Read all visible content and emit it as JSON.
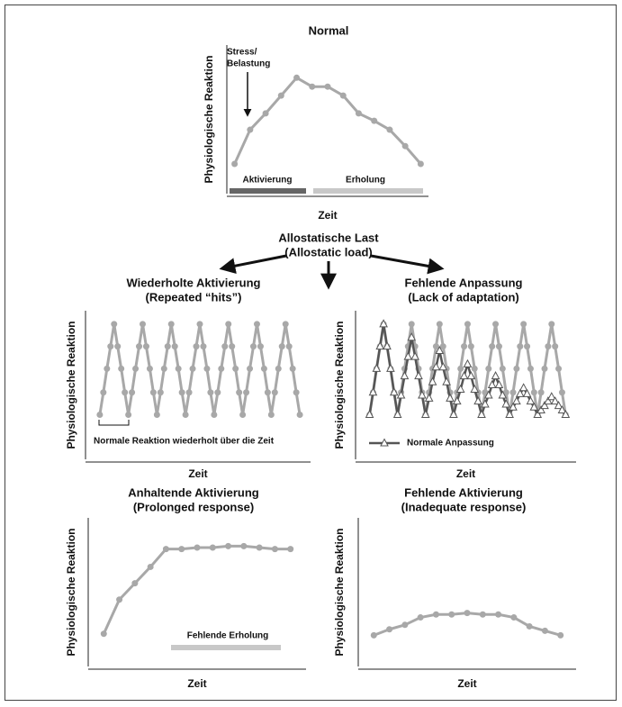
{
  "center": {
    "title": "Allostatische Last",
    "subtitle": "(Allostatic load)"
  },
  "chart_data": [
    {
      "type": "line",
      "title": "Normal",
      "xlabel": "Zeit",
      "ylabel": "Physiologische Reaktion",
      "x": [
        0,
        1,
        2,
        3,
        4,
        5,
        6,
        7,
        8,
        9,
        10,
        11,
        12
      ],
      "xlim": [
        -0.5,
        12.5
      ],
      "ylim": [
        0,
        100
      ],
      "series": [
        {
          "color": "#a8a8a8",
          "marker": "circle",
          "values": [
            20,
            43,
            54,
            66,
            78,
            72,
            72,
            66,
            54,
            49,
            43,
            32,
            20
          ]
        }
      ],
      "annotations": [
        "Stress/",
        "Belastung",
        "Aktivierung",
        "Erholung"
      ]
    },
    {
      "type": "line",
      "title": "Wiederholte Aktivierung",
      "subtitle": "(Repeated “hits”)",
      "xlabel": "Zeit",
      "ylabel": "Physiologische Reaktion",
      "x": [
        0,
        1,
        2,
        3,
        4,
        5,
        6,
        7,
        8,
        9,
        10,
        11,
        12,
        13,
        14,
        15,
        16,
        17,
        18,
        19,
        20,
        21,
        22,
        23,
        24,
        25,
        26,
        27,
        28,
        29,
        30,
        31,
        32,
        33,
        34,
        35,
        36,
        37,
        38,
        39,
        40,
        41,
        42,
        43,
        44,
        45,
        46,
        47,
        48,
        49,
        50,
        51,
        52,
        53,
        54,
        55,
        56
      ],
      "xlim": [
        -4,
        59
      ],
      "ylim": [
        0,
        100
      ],
      "series": [
        {
          "color": "#a8a8a8",
          "marker": "circle",
          "values": [
            30,
            45,
            61,
            76,
            91,
            76,
            61,
            45,
            30,
            45,
            61,
            76,
            91,
            76,
            61,
            45,
            30,
            45,
            61,
            76,
            91,
            76,
            61,
            45,
            30,
            45,
            61,
            76,
            91,
            76,
            61,
            45,
            30,
            45,
            61,
            76,
            91,
            76,
            61,
            45,
            30,
            45,
            61,
            76,
            91,
            76,
            61,
            45,
            30,
            45,
            61,
            76,
            91,
            76,
            61,
            45,
            30
          ]
        }
      ],
      "annotations": [
        "Normale Reaktion wiederholt über die Zeit"
      ]
    },
    {
      "type": "line",
      "title": "Fehlende Anpassung",
      "subtitle": "(Lack of adaptation)",
      "xlabel": "Zeit",
      "ylabel": "Physiologische Reaktion",
      "x": [
        0,
        1,
        2,
        3,
        4,
        5,
        6,
        7,
        8,
        9,
        10,
        11,
        12,
        13,
        14,
        15,
        16,
        17,
        18,
        19,
        20,
        21,
        22,
        23,
        24,
        25,
        26,
        27,
        28,
        29,
        30,
        31,
        32,
        33,
        34,
        35,
        36,
        37,
        38,
        39,
        40,
        41,
        42,
        43,
        44,
        45,
        46,
        47,
        48,
        49,
        50,
        51,
        52,
        53,
        54,
        55,
        56
      ],
      "xlim": [
        -4,
        59
      ],
      "ylim": [
        0,
        100
      ],
      "series": [
        {
          "color": "#a8a8a8",
          "marker": "circle",
          "values": [
            30,
            45,
            61,
            76,
            91,
            76,
            61,
            45,
            30,
            45,
            61,
            76,
            91,
            76,
            61,
            45,
            30,
            45,
            61,
            76,
            91,
            76,
            61,
            45,
            30,
            45,
            61,
            76,
            91,
            76,
            61,
            45,
            30,
            45,
            61,
            76,
            91,
            76,
            61,
            45,
            30,
            45,
            61,
            76,
            91,
            76,
            61,
            45,
            30,
            45,
            61,
            76,
            91,
            76,
            61,
            45,
            30
          ]
        },
        {
          "name": "Normale Anpassung",
          "color": "#555555",
          "marker": "triangle",
          "values": [
            30,
            45,
            61,
            76,
            91,
            76,
            61,
            45,
            30,
            43,
            56,
            69,
            82,
            69,
            56,
            43,
            30,
            41,
            52,
            62,
            73,
            62,
            52,
            41,
            30,
            39,
            47,
            56,
            64,
            56,
            47,
            39,
            30,
            37,
            43,
            50,
            56,
            50,
            43,
            37,
            30,
            35,
            39,
            44,
            48,
            44,
            39,
            35,
            30,
            33,
            36,
            39,
            42,
            39,
            36,
            33,
            30
          ]
        }
      ]
    },
    {
      "type": "line",
      "title": "Anhaltende Aktivierung",
      "subtitle": "(Prolonged response)",
      "xlabel": "Zeit",
      "ylabel": "Physiologische Reaktion",
      "x": [
        0,
        1,
        2,
        3,
        4,
        5,
        6,
        7,
        8,
        9,
        10,
        11,
        12
      ],
      "xlim": [
        -1,
        13
      ],
      "ylim": [
        0,
        100
      ],
      "series": [
        {
          "color": "#a8a8a8",
          "marker": "circle",
          "values": [
            22,
            45,
            56,
            67,
            79,
            79,
            80,
            80,
            81,
            81,
            80,
            79,
            79
          ]
        }
      ],
      "annotations": [
        "Fehlende Erholung"
      ]
    },
    {
      "type": "line",
      "title": "Fehlende Aktivierung",
      "subtitle": "(Inadequate response)",
      "xlabel": "Zeit",
      "ylabel": "Physiologische Reaktion",
      "x": [
        0,
        1,
        2,
        3,
        4,
        5,
        6,
        7,
        8,
        9,
        10,
        11,
        12
      ],
      "xlim": [
        -1,
        13
      ],
      "ylim": [
        0,
        100
      ],
      "series": [
        {
          "color": "#a8a8a8",
          "marker": "circle",
          "values": [
            21,
            25,
            28,
            33,
            35,
            35,
            36,
            35,
            35,
            33,
            27,
            24,
            21
          ]
        }
      ]
    }
  ]
}
